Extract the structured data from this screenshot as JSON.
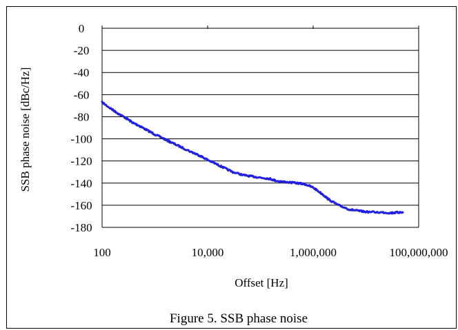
{
  "caption": "Figure 5. SSB phase noise",
  "chart_data": {
    "type": "line",
    "title": "",
    "xlabel": "Offset [Hz]",
    "ylabel": "SSB phase noise [dBc/Hz]",
    "x_scale": "log",
    "xlim": [
      100,
      100000000
    ],
    "ylim": [
      -180,
      0
    ],
    "x_ticks": [
      100,
      10000,
      1000000,
      100000000
    ],
    "x_tick_labels": [
      "100",
      "10,000",
      "1,000,000",
      "100,000,000"
    ],
    "y_ticks": [
      0,
      -20,
      -40,
      -60,
      -80,
      -100,
      -120,
      -140,
      -160,
      -180
    ],
    "y_tick_labels": [
      "0",
      "-20",
      "-40",
      "-60",
      "-80",
      "-100",
      "-120",
      "-140",
      "-160",
      "-180"
    ],
    "grid": "horizontal",
    "legend": "none",
    "series": [
      {
        "color": "#1f1fe6",
        "x": [
          100,
          150,
          200,
          300,
          400,
          500,
          700,
          1000,
          1500,
          2000,
          3000,
          5000,
          7000,
          10000,
          15000,
          20000,
          30000,
          50000,
          70000,
          100000,
          150000,
          200000,
          300000,
          500000,
          700000,
          1000000,
          1500000,
          2000000,
          3000000,
          5000000,
          7000000,
          10000000,
          20000000,
          30000000,
          40000000,
          50000000
        ],
        "y": [
          -67,
          -73,
          -77,
          -82,
          -86,
          -88,
          -92,
          -96,
          -100,
          -103,
          -107,
          -112,
          -115,
          -119,
          -123,
          -126,
          -130,
          -133,
          -134,
          -135,
          -136,
          -138,
          -139,
          -140,
          -141,
          -144,
          -150,
          -155,
          -160,
          -164,
          -165,
          -166,
          -166.5,
          -167,
          -166.5,
          -166.5
        ]
      }
    ]
  }
}
